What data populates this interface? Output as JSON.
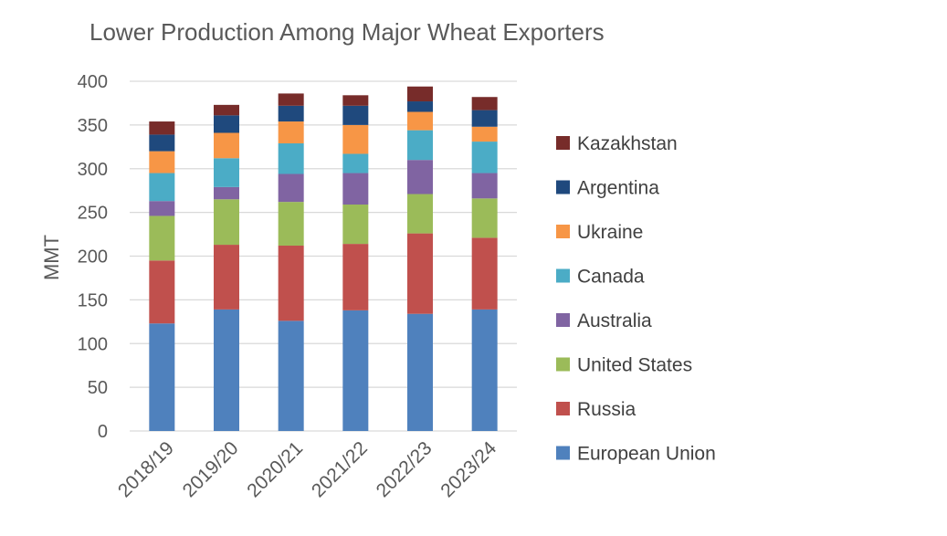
{
  "chart_data": {
    "type": "bar",
    "stacked": true,
    "title": "Lower Production Among Major Wheat Exporters",
    "xlabel": "",
    "ylabel": "MMT",
    "ylim": [
      0,
      400
    ],
    "yticks": [
      0,
      50,
      100,
      150,
      200,
      250,
      300,
      350,
      400
    ],
    "grid": true,
    "legend_position": "right",
    "categories": [
      "2018/19",
      "2019/20",
      "2020/21",
      "2021/22",
      "2022/23",
      "2023/24"
    ],
    "series": [
      {
        "name": "European Union",
        "color": "#4f81bd",
        "values": [
          123,
          139,
          126,
          138,
          134,
          139
        ]
      },
      {
        "name": "Russia",
        "color": "#c0504d",
        "values": [
          72,
          74,
          86,
          76,
          92,
          82
        ]
      },
      {
        "name": "United States",
        "color": "#9bbb59",
        "values": [
          51,
          52,
          50,
          45,
          45,
          45
        ]
      },
      {
        "name": "Australia",
        "color": "#8064a2",
        "values": [
          17,
          14,
          32,
          36,
          39,
          29
        ]
      },
      {
        "name": "Canada",
        "color": "#4bacc6",
        "values": [
          32,
          33,
          35,
          22,
          34,
          36
        ]
      },
      {
        "name": "Ukraine",
        "color": "#f79646",
        "values": [
          25,
          29,
          25,
          33,
          21,
          17
        ]
      },
      {
        "name": "Argentina",
        "color": "#1f497d",
        "values": [
          19,
          20,
          18,
          22,
          12,
          19
        ]
      },
      {
        "name": "Kazakhstan",
        "color": "#772c2a",
        "values": [
          15,
          12,
          14,
          12,
          17,
          15
        ]
      }
    ]
  }
}
